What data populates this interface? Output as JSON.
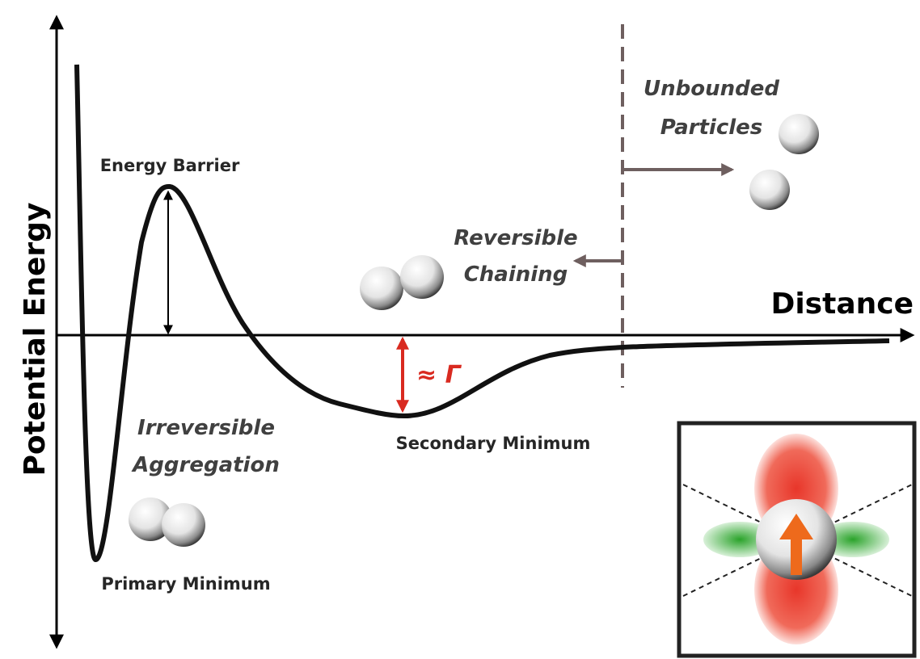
{
  "axes": {
    "y_label": "Potential Energy",
    "x_label": "Distance"
  },
  "labels": {
    "energy_barrier": "Energy Barrier",
    "primary_minimum": "Primary Minimum",
    "secondary_minimum": "Secondary Minimum",
    "irreversible_aggregation": [
      "Irreversible",
      "Aggregation"
    ],
    "reversible_chaining": [
      "Reversible",
      "Chaining"
    ],
    "unbounded_particles": [
      "Unbounded",
      "Particles"
    ],
    "gamma": "≈ Γ"
  }
}
